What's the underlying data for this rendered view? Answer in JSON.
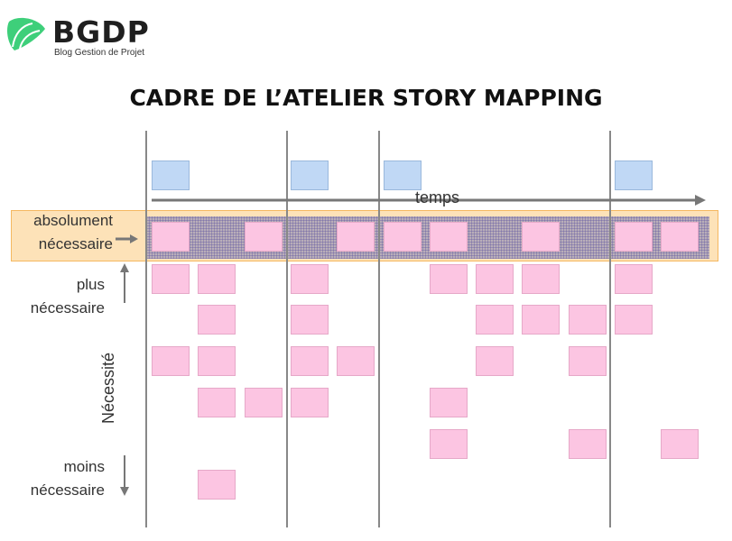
{
  "logo": {
    "name": "BGDP",
    "tagline": "Blog Gestion de Projet",
    "color": "#3ecf7a"
  },
  "title": "CADRE DE L’ATELIER STORY MAPPING",
  "labels": {
    "time": "temps",
    "axis": "Nécessité",
    "top": [
      "absolument",
      "nécessaire"
    ],
    "more": [
      "plus",
      "nécessaire"
    ],
    "less": [
      "moins",
      "nécessaire"
    ]
  },
  "colors": {
    "story": "#fcc5e2",
    "activity": "#c0d8f5",
    "highlight": "#fde2b8"
  },
  "grid": {
    "activities": [
      0,
      3,
      5,
      10
    ],
    "rows": [
      [
        0,
        2,
        4,
        5,
        6,
        8,
        10,
        11
      ],
      [
        0,
        1,
        3,
        6,
        7,
        8,
        10
      ],
      [
        1,
        3,
        7,
        8,
        9,
        10
      ],
      [
        0,
        1,
        3,
        4,
        7,
        9
      ],
      [
        1,
        2,
        3,
        6
      ],
      [
        6,
        9,
        11
      ],
      [
        1
      ]
    ]
  }
}
